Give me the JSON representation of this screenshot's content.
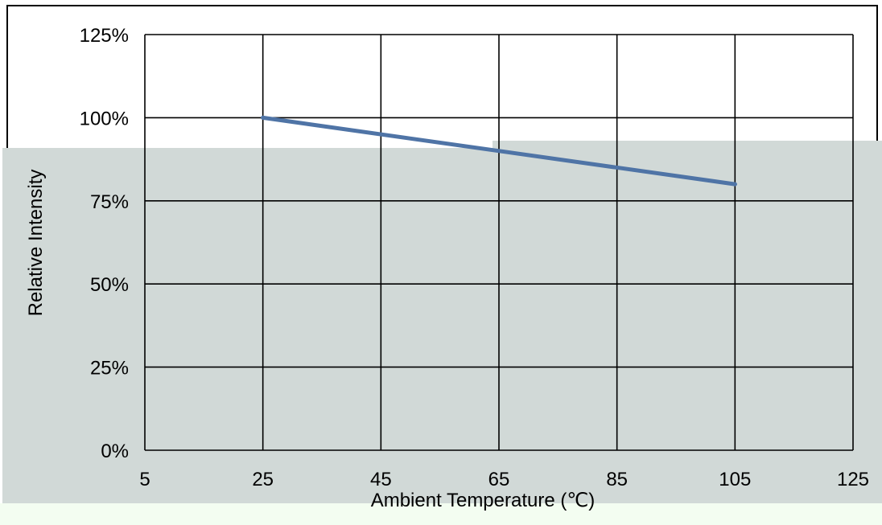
{
  "chart_data": {
    "type": "line",
    "title": "",
    "xlabel": "Ambient Temperature (℃)",
    "ylabel": "Relative Intensity",
    "xlim": [
      5,
      125
    ],
    "ylim": [
      0,
      125
    ],
    "x_ticks": [
      5,
      25,
      45,
      65,
      85,
      105,
      125
    ],
    "y_ticks": [
      0,
      25,
      50,
      75,
      100,
      125
    ],
    "x_tick_labels": [
      "5",
      "25",
      "45",
      "65",
      "85",
      "105",
      "125"
    ],
    "y_tick_labels": [
      "0%",
      "25%",
      "50%",
      "75%",
      "100%",
      "125%"
    ],
    "grid": true,
    "legend": "none",
    "series": [
      {
        "color": "#4f74a6",
        "x": [
          25,
          105
        ],
        "y": [
          100,
          80
        ]
      }
    ]
  }
}
